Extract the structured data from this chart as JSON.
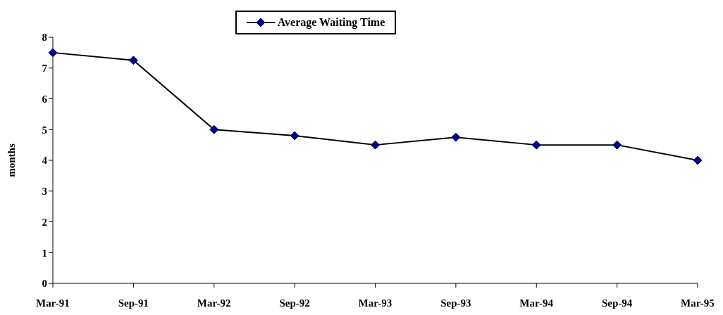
{
  "chart_data": {
    "type": "line",
    "ylabel": "months",
    "categories": [
      "Mar-91",
      "Sep-91",
      "Mar-92",
      "Sep-92",
      "Mar-93",
      "Sep-93",
      "Mar-94",
      "Sep-94",
      "Mar-95"
    ],
    "series": [
      {
        "name": "Average Waiting Time",
        "color": "#000080",
        "values": [
          7.5,
          7.25,
          5,
          4.8,
          4.5,
          4.75,
          4.5,
          4.5,
          4
        ]
      }
    ],
    "ylim": [
      0,
      8
    ],
    "yticks": [
      0,
      1,
      2,
      3,
      4,
      5,
      6,
      7,
      8
    ],
    "grid": false,
    "legend": "top",
    "marker": "diamond",
    "line_style": "solid"
  }
}
